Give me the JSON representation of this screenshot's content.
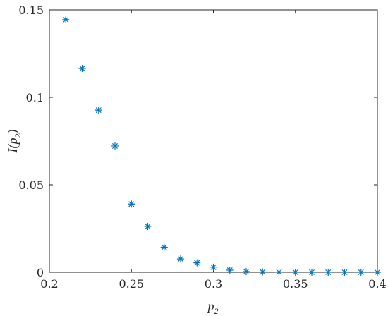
{
  "chart_data": {
    "type": "scatter",
    "xlabel": {
      "main": "p",
      "sub": "2"
    },
    "ylabel": {
      "prefix": "I(p",
      "sub": "2",
      "suffix": ")"
    },
    "xlim": [
      0.2,
      0.4
    ],
    "ylim": [
      0,
      0.15
    ],
    "xticks": [
      0.2,
      0.25,
      0.3,
      0.35,
      0.4
    ],
    "xtick_labels": [
      "0.2",
      "0.25",
      "0.3",
      "0.35",
      "0.4"
    ],
    "yticks": [
      0,
      0.05,
      0.1,
      0.15
    ],
    "ytick_labels": [
      "0",
      "0.05",
      "0.1",
      "0.15"
    ],
    "grid": false,
    "marker": "asterisk",
    "marker_color": "#0072BD",
    "axis_color": "#262626",
    "series": [
      {
        "x": [
          0.21,
          0.22,
          0.23,
          0.24,
          0.25,
          0.26,
          0.27,
          0.28,
          0.29,
          0.3,
          0.31,
          0.32,
          0.33,
          0.34,
          0.35,
          0.36,
          0.37,
          0.38,
          0.39,
          0.4
        ],
        "y": [
          0.1444,
          0.1165,
          0.0927,
          0.0722,
          0.039,
          0.0262,
          0.0143,
          0.0076,
          0.0054,
          0.0029,
          0.0012,
          0.0004,
          0.0002,
          0.0001,
          0.0,
          0.0,
          0.0,
          0.0,
          0.0,
          0.0
        ]
      }
    ]
  }
}
